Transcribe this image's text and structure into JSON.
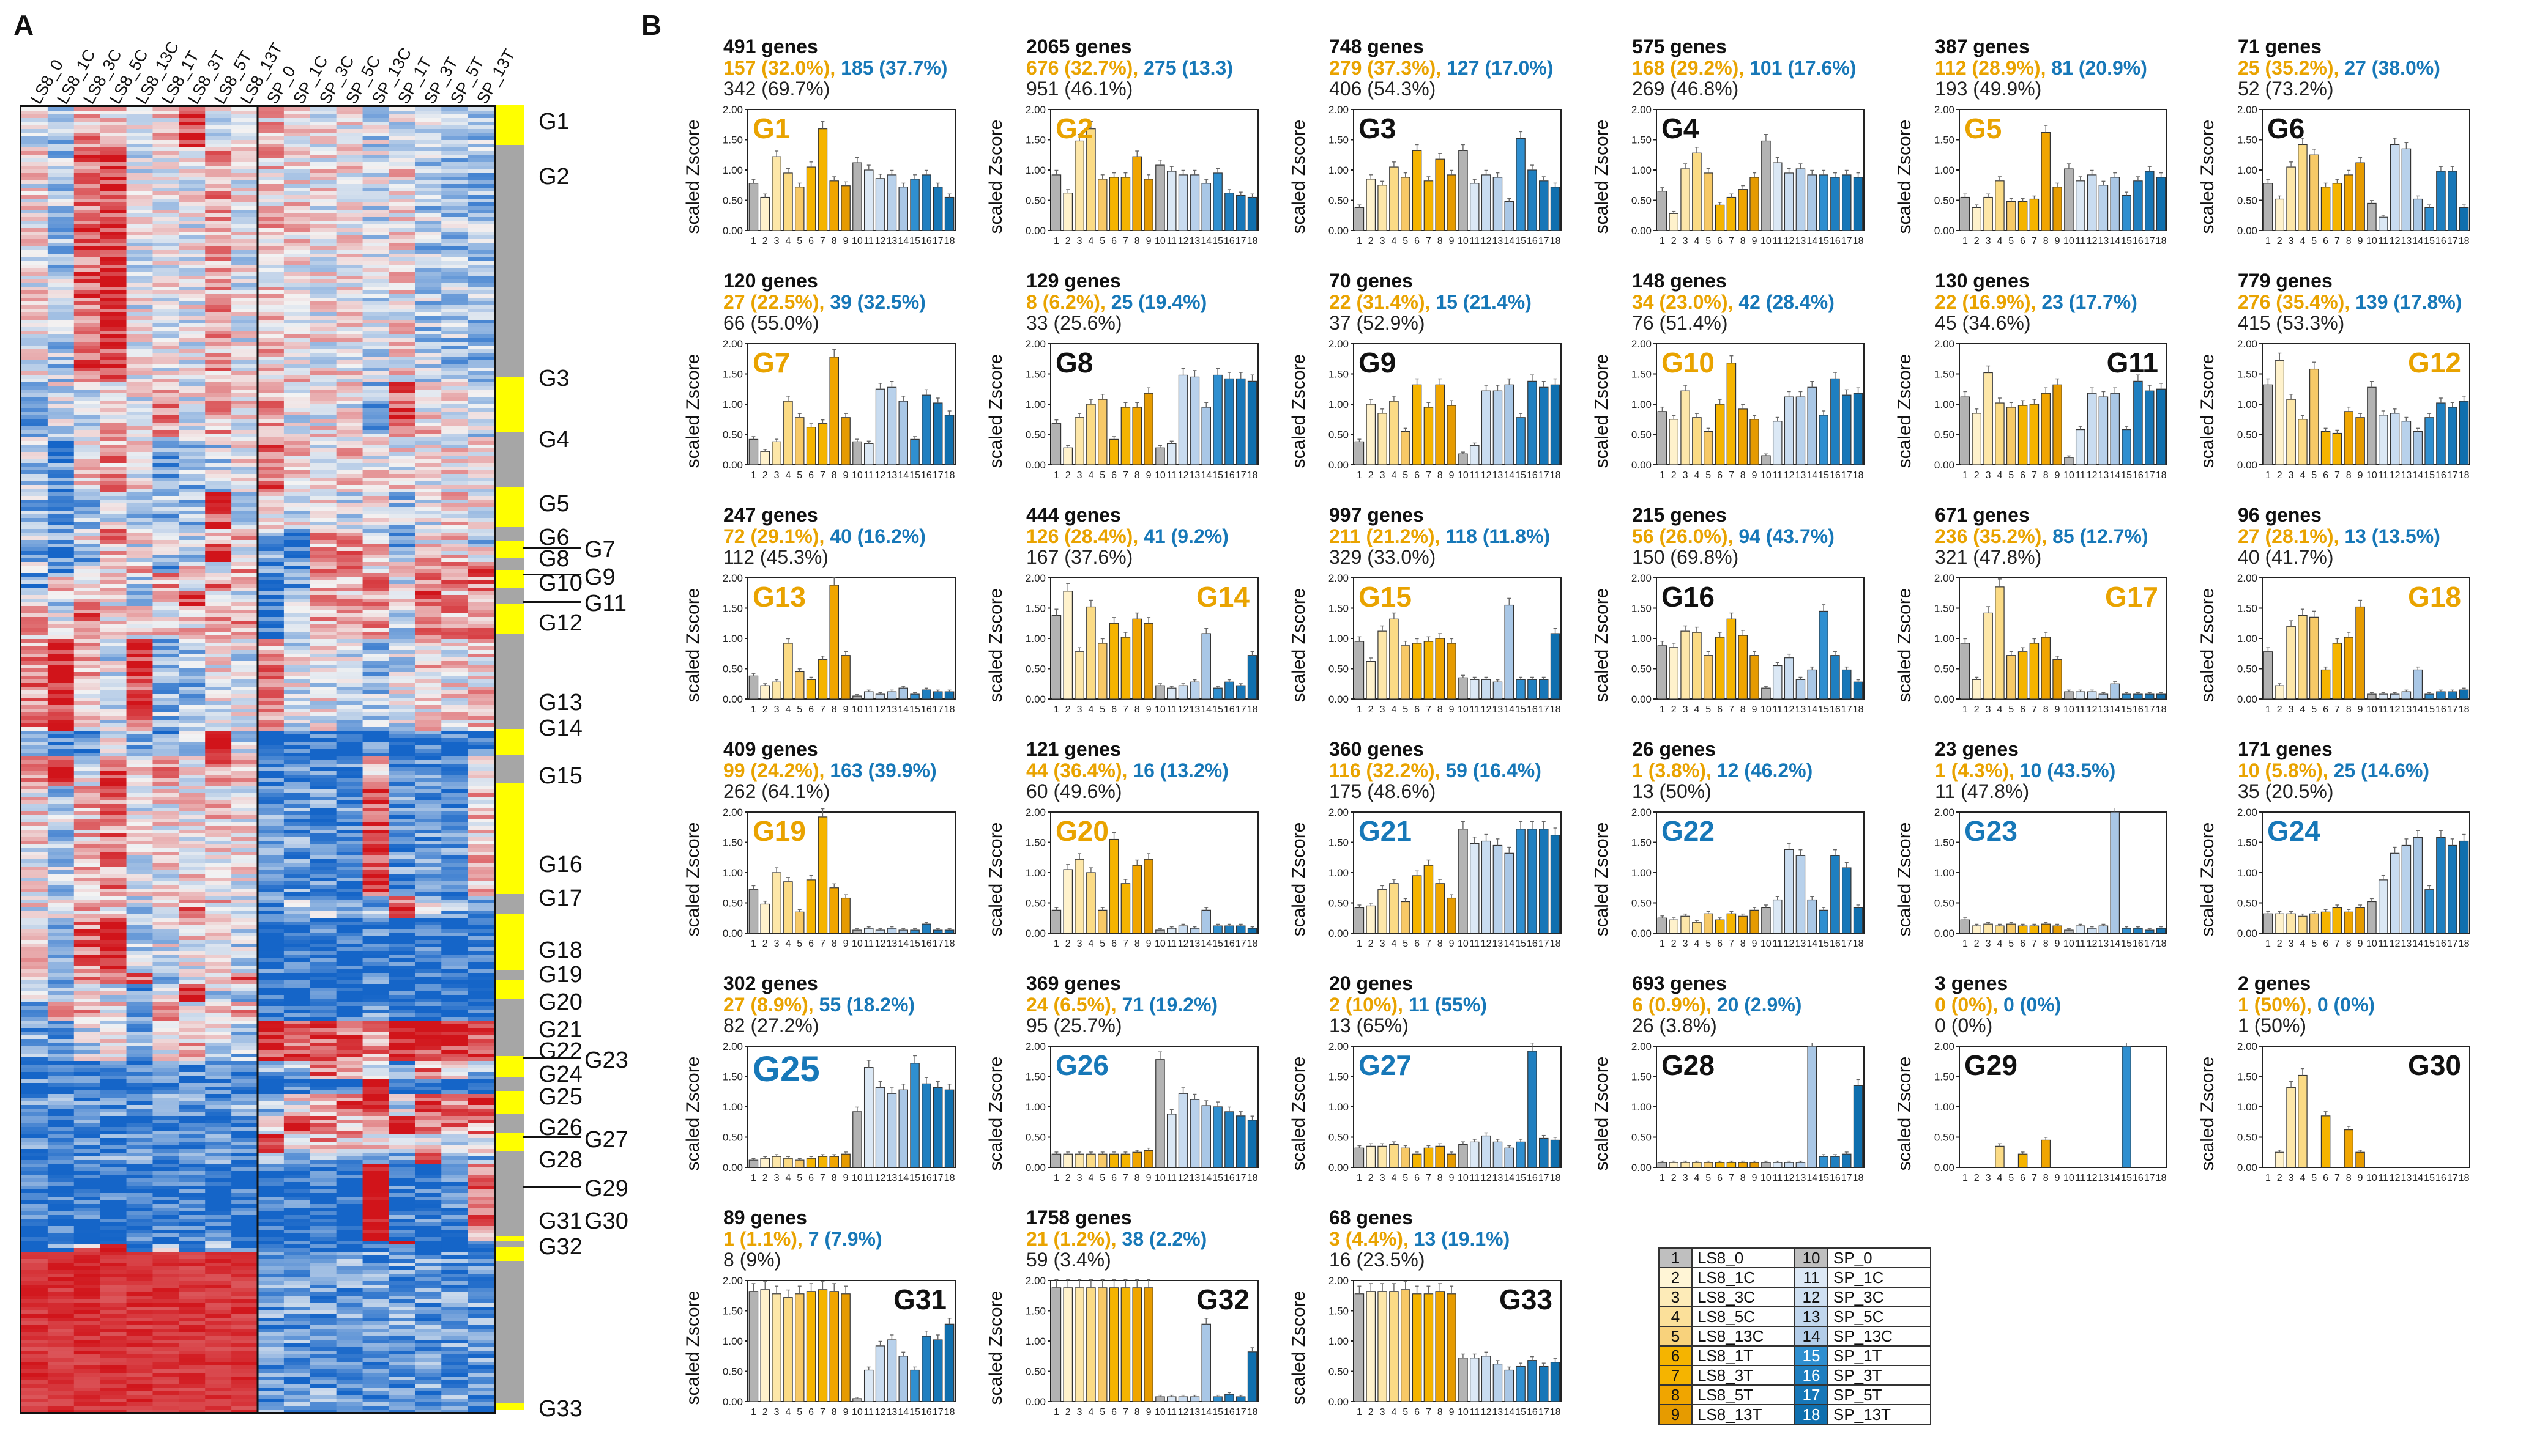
{
  "panels": {
    "a": "A",
    "b": "B"
  },
  "heatmap": {
    "columns": [
      "LS8_0",
      "LS8_1C",
      "LS8_3C",
      "LS8_5C",
      "LS8_13C",
      "LS8_1T",
      "LS8_3T",
      "LS8_5T",
      "LS8_13T",
      "SP_0",
      "SP_1C",
      "SP_3C",
      "SP_5C",
      "SP_13C",
      "SP_1T",
      "SP_3T",
      "SP_5T",
      "SP_13T"
    ],
    "groups": [
      "G1",
      "G2",
      "G3",
      "G4",
      "G5",
      "G6",
      "G7",
      "G8",
      "G9",
      "G10",
      "G11",
      "G12",
      "G13",
      "G14",
      "G15",
      "G16",
      "G17",
      "G18",
      "G19",
      "G20",
      "G21",
      "G22",
      "G23",
      "G24",
      "G25",
      "G26",
      "G27",
      "G28",
      "G29",
      "G30",
      "G31",
      "G32",
      "G33"
    ],
    "colors": {
      "high": "#d1141a",
      "mid": "#f3f3f3",
      "low": "#1565c8",
      "sidebar_yellow": "#ffff00",
      "sidebar_gray": "#a6a6a6"
    }
  },
  "chart_common": {
    "ylabel": "scaled Zscore",
    "yticks": [
      "0.00",
      "0.50",
      "1.00",
      "1.50",
      "2.00"
    ],
    "ylim": [
      0,
      2.0
    ],
    "xticks": [
      "1",
      "2",
      "3",
      "4",
      "5",
      "6",
      "7",
      "8",
      "9",
      "10",
      "11",
      "12",
      "13",
      "14",
      "15",
      "16",
      "17",
      "18"
    ],
    "bar_colors": [
      "#b3b3b3",
      "#fff2cc",
      "#fde7a9",
      "#fbdb85",
      "#f7c967",
      "#f5b400",
      "#f5b400",
      "#f0a500",
      "#e69b00",
      "#b3b3b3",
      "#dbe8f5",
      "#c9dcf0",
      "#b8d1eb",
      "#a9c7e6",
      "#2f8fd0",
      "#1f7fc0",
      "#1777b8",
      "#0f6fae"
    ]
  },
  "chart_data": [
    {
      "type": "bar",
      "title": "G1",
      "title_color": "#e9a300",
      "header": {
        "genes": "491 genes",
        "ls8": "157 (32.0%),",
        "sp": "185 (37.7%)",
        "all": "342 (69.7%)"
      },
      "values": [
        0.78,
        0.55,
        1.22,
        0.95,
        0.72,
        1.05,
        1.68,
        0.82,
        0.74,
        1.12,
        1.0,
        0.86,
        0.92,
        0.72,
        0.85,
        0.92,
        0.72,
        0.55
      ]
    },
    {
      "type": "bar",
      "title": "G2",
      "title_color": "#e9a300",
      "header": {
        "genes": "2065 genes",
        "ls8": "676 (32.7%),",
        "sp": "275 (13.3)",
        "all": "951 (46.1%)"
      },
      "values": [
        0.92,
        0.62,
        1.48,
        1.68,
        0.85,
        0.88,
        0.88,
        1.22,
        0.85,
        1.08,
        0.98,
        0.92,
        0.92,
        0.78,
        0.95,
        0.62,
        0.58,
        0.55
      ]
    },
    {
      "type": "bar",
      "title": "G3",
      "title_color": "#111111",
      "header": {
        "genes": "748 genes",
        "ls8": "279 (37.3%),",
        "sp": "127 (17.0%)",
        "all": "406 (54.3%)"
      },
      "values": [
        0.38,
        0.85,
        0.75,
        1.05,
        0.88,
        1.32,
        0.82,
        1.18,
        0.92,
        1.32,
        0.78,
        0.92,
        0.88,
        0.48,
        1.52,
        1.0,
        0.82,
        0.72
      ]
    },
    {
      "type": "bar",
      "title": "G4",
      "title_color": "#111111",
      "header": {
        "genes": "575 genes",
        "ls8": "168 (29.2%),",
        "sp": "101 (17.6%)",
        "all": "269 (46.8%)"
      },
      "values": [
        0.65,
        0.28,
        1.02,
        1.28,
        0.95,
        0.42,
        0.55,
        0.68,
        0.88,
        1.48,
        1.12,
        0.95,
        1.02,
        0.92,
        0.92,
        0.88,
        0.92,
        0.88
      ]
    },
    {
      "type": "bar",
      "title": "G5",
      "title_color": "#e9a300",
      "header": {
        "genes": "387 genes",
        "ls8": "112 (28.9%),",
        "sp": "81 (20.9%)",
        "all": "193 (49.9%)"
      },
      "values": [
        0.55,
        0.38,
        0.55,
        0.82,
        0.48,
        0.48,
        0.52,
        1.62,
        0.72,
        1.02,
        0.82,
        0.92,
        0.75,
        0.88,
        0.58,
        0.82,
        0.98,
        0.88
      ]
    },
    {
      "type": "bar",
      "title": "G6",
      "title_color": "#111111",
      "header": {
        "genes": "71 genes",
        "ls8": "25 (35.2%),",
        "sp": "27 (38.0%)",
        "all": "52 (73.2%)"
      },
      "values": [
        0.78,
        0.52,
        1.05,
        1.42,
        1.25,
        0.72,
        0.78,
        0.92,
        1.12,
        0.45,
        0.22,
        1.42,
        1.35,
        0.52,
        0.38,
        0.98,
        0.98,
        0.38
      ]
    },
    {
      "type": "bar",
      "title": "G7",
      "title_color": "#e9a300",
      "header": {
        "genes": "120 genes",
        "ls8": "27 (22.5%),",
        "sp": "39 (32.5%)",
        "all": "66 (55.0%)"
      },
      "values": [
        0.42,
        0.22,
        0.38,
        1.05,
        0.78,
        0.62,
        0.68,
        1.78,
        0.78,
        0.38,
        0.35,
        1.25,
        1.28,
        1.05,
        0.42,
        1.15,
        1.02,
        0.82
      ]
    },
    {
      "type": "bar",
      "title": "G8",
      "title_color": "#111111",
      "header": {
        "genes": "129 genes",
        "ls8": "8 (6.2%),",
        "sp": "25 (19.4%)",
        "all": "33 (25.6%)"
      },
      "values": [
        0.68,
        0.28,
        0.78,
        1.0,
        1.08,
        0.42,
        0.95,
        0.95,
        1.18,
        0.28,
        0.35,
        1.48,
        1.45,
        0.95,
        1.48,
        1.42,
        1.42,
        1.38
      ]
    },
    {
      "type": "bar",
      "title": "G9",
      "title_color": "#111111",
      "header": {
        "genes": "70 genes",
        "ls8": "22 (31.4%),",
        "sp": "15 (21.4%)",
        "all": "37 (52.9%)"
      },
      "values": [
        0.38,
        1.0,
        0.85,
        1.05,
        0.55,
        1.32,
        0.95,
        1.32,
        0.98,
        0.18,
        0.32,
        1.22,
        1.22,
        1.32,
        0.78,
        1.38,
        1.28,
        1.32
      ]
    },
    {
      "type": "bar",
      "title": "G10",
      "title_color": "#e9a300",
      "header": {
        "genes": "148 genes",
        "ls8": "34 (23.0%),",
        "sp": "42 (28.4%)",
        "all": "76 (51.4%)"
      },
      "values": [
        0.88,
        0.75,
        1.22,
        0.78,
        0.55,
        1.0,
        1.68,
        0.92,
        0.75,
        0.15,
        0.72,
        1.12,
        1.12,
        1.28,
        0.82,
        1.42,
        1.15,
        1.18
      ]
    },
    {
      "type": "bar",
      "title": "G11",
      "title_color": "#111111",
      "header": {
        "genes": "130 genes",
        "ls8": "22 (16.9%),",
        "sp": "23 (17.7%)",
        "all": "45 (34.6%)"
      },
      "values": [
        1.12,
        0.85,
        1.52,
        1.02,
        0.95,
        0.98,
        1.0,
        1.18,
        1.32,
        0.12,
        0.58,
        1.18,
        1.12,
        1.18,
        0.58,
        1.38,
        1.22,
        1.25
      ]
    },
    {
      "type": "bar",
      "title": "G12",
      "title_color": "#e9a300",
      "header": {
        "genes": "779 genes",
        "ls8": "276 (35.4%),",
        "sp": "139 (17.8%)",
        "all": "415 (53.3%)"
      },
      "values": [
        1.32,
        1.72,
        1.08,
        0.75,
        1.58,
        0.55,
        0.52,
        0.88,
        0.78,
        1.28,
        0.82,
        0.85,
        0.72,
        0.55,
        0.78,
        1.02,
        0.95,
        1.05
      ]
    },
    {
      "type": "bar",
      "title": "G13",
      "title_color": "#e9a300",
      "header": {
        "genes": "247 genes",
        "ls8": "72 (29.1%),",
        "sp": "40 (16.2%)",
        "all": "112 (45.3%)"
      },
      "values": [
        0.38,
        0.22,
        0.28,
        0.92,
        0.45,
        0.32,
        0.65,
        1.88,
        0.72,
        0.05,
        0.12,
        0.08,
        0.12,
        0.18,
        0.08,
        0.15,
        0.12,
        0.12
      ]
    },
    {
      "type": "bar",
      "title": "G14",
      "title_color": "#e9a300",
      "header": {
        "genes": "444 genes",
        "ls8": "126 (28.4%),",
        "sp": "41 (9.2%)",
        "all": "167 (37.6%)"
      },
      "values": [
        1.38,
        1.78,
        0.78,
        1.52,
        0.92,
        1.25,
        1.02,
        1.32,
        1.25,
        0.22,
        0.18,
        0.22,
        0.28,
        1.08,
        0.18,
        0.28,
        0.22,
        0.72
      ]
    },
    {
      "type": "bar",
      "title": "G15",
      "title_color": "#e9a300",
      "header": {
        "genes": "997 genes",
        "ls8": "211 (21.2%),",
        "sp": "118 (11.8%)",
        "all": "329 (33.0%)"
      },
      "values": [
        0.95,
        0.62,
        1.12,
        1.32,
        0.88,
        0.92,
        0.95,
        1.0,
        0.92,
        0.35,
        0.32,
        0.32,
        0.28,
        1.55,
        0.32,
        0.32,
        0.32,
        1.08
      ]
    },
    {
      "type": "bar",
      "title": "G16",
      "title_color": "#111111",
      "header": {
        "genes": "215 genes",
        "ls8": "56 (26.0%),",
        "sp": "94 (43.7%)",
        "all": "150 (69.8%)"
      },
      "values": [
        0.88,
        0.85,
        1.12,
        1.1,
        0.72,
        1.02,
        1.32,
        1.05,
        0.72,
        0.18,
        0.55,
        0.68,
        0.32,
        0.48,
        1.45,
        0.72,
        0.48,
        0.28
      ]
    },
    {
      "type": "bar",
      "title": "G17",
      "title_color": "#e9a300",
      "header": {
        "genes": "671 genes",
        "ls8": "236 (35.2%),",
        "sp": "85 (12.7%)",
        "all": "321 (47.8%)"
      },
      "values": [
        0.92,
        0.32,
        1.42,
        1.85,
        0.72,
        0.78,
        0.92,
        1.02,
        0.65,
        0.12,
        0.12,
        0.12,
        0.08,
        0.25,
        0.08,
        0.08,
        0.08,
        0.08
      ]
    },
    {
      "type": "bar",
      "title": "G18",
      "title_color": "#e9a300",
      "header": {
        "genes": "96 genes",
        "ls8": "27 (28.1%),",
        "sp": "13 (13.5%)",
        "all": "40 (41.7%)"
      },
      "values": [
        0.78,
        0.22,
        1.2,
        1.38,
        1.35,
        0.48,
        0.92,
        1.02,
        1.52,
        0.08,
        0.08,
        0.08,
        0.12,
        0.48,
        0.08,
        0.12,
        0.12,
        0.15
      ]
    },
    {
      "type": "bar",
      "title": "G19",
      "title_color": "#e9a300",
      "header": {
        "genes": "409 genes",
        "ls8": "99 (24.2%),",
        "sp": "163 (39.9%)",
        "all": "262 (64.1%)"
      },
      "values": [
        0.72,
        0.48,
        1.0,
        0.85,
        0.35,
        0.88,
        1.92,
        0.75,
        0.58,
        0.05,
        0.08,
        0.05,
        0.08,
        0.05,
        0.05,
        0.15,
        0.05,
        0.05
      ]
    },
    {
      "type": "bar",
      "title": "G20",
      "title_color": "#e9a300",
      "header": {
        "genes": "121 genes",
        "ls8": "44 (36.4%),",
        "sp": "16 (13.2%)",
        "all": "60 (49.6%)"
      },
      "values": [
        0.38,
        1.05,
        1.22,
        1.0,
        0.38,
        1.55,
        0.82,
        1.12,
        1.22,
        0.05,
        0.08,
        0.12,
        0.08,
        0.38,
        0.12,
        0.12,
        0.12,
        0.08
      ]
    },
    {
      "type": "bar",
      "title": "G21",
      "title_color": "#1778b8",
      "header": {
        "genes": "360 genes",
        "ls8": "116 (32.2%),",
        "sp": "59 (16.4%)",
        "all": "175 (48.6%)"
      },
      "values": [
        0.42,
        0.45,
        0.72,
        0.82,
        0.52,
        0.95,
        1.12,
        0.82,
        0.58,
        1.72,
        1.48,
        1.52,
        1.45,
        1.32,
        1.72,
        1.72,
        1.72,
        1.62
      ]
    },
    {
      "type": "bar",
      "title": "G22",
      "title_color": "#1778b8",
      "header": {
        "genes": "26 genes",
        "ls8": "1 (3.8%),",
        "sp": "12 (46.2%)",
        "all": "13 (50%)"
      },
      "values": [
        0.25,
        0.22,
        0.28,
        0.18,
        0.32,
        0.22,
        0.32,
        0.28,
        0.38,
        0.42,
        0.55,
        1.38,
        1.28,
        0.55,
        0.38,
        1.28,
        1.08,
        0.42
      ]
    },
    {
      "type": "bar",
      "title": "G23",
      "title_color": "#1778b8",
      "header": {
        "genes": "23 genes",
        "ls8": "1 (4.3%),",
        "sp": "10 (43.5%)",
        "all": "11 (47.8%)"
      },
      "values": [
        0.22,
        0.12,
        0.15,
        0.12,
        0.15,
        0.12,
        0.12,
        0.15,
        0.12,
        0.05,
        0.12,
        0.08,
        0.12,
        2.0,
        0.08,
        0.08,
        0.05,
        0.08
      ]
    },
    {
      "type": "bar",
      "title": "G24",
      "title_color": "#1778b8",
      "header": {
        "genes": "171 genes",
        "ls8": "10 (5.8%),",
        "sp": "25 (14.6%)",
        "all": "35 (20.5%)"
      },
      "values": [
        0.32,
        0.32,
        0.32,
        0.28,
        0.32,
        0.35,
        0.42,
        0.35,
        0.42,
        0.52,
        0.88,
        1.32,
        1.45,
        1.58,
        0.72,
        1.58,
        1.45,
        1.52
      ]
    },
    {
      "type": "bar",
      "title": "G25",
      "title_color": "#1778b8",
      "big": true,
      "header": {
        "genes": "302 genes",
        "ls8": "27 (8.9%),",
        "sp": "55 (18.2%)",
        "all": "82 (27.2%)"
      },
      "values": [
        0.12,
        0.15,
        0.18,
        0.15,
        0.12,
        0.15,
        0.18,
        0.18,
        0.22,
        0.92,
        1.65,
        1.32,
        1.22,
        1.28,
        1.72,
        1.38,
        1.32,
        1.28
      ]
    },
    {
      "type": "bar",
      "title": "G26",
      "title_color": "#1778b8",
      "header": {
        "genes": "369 genes",
        "ls8": "24 (6.5%),",
        "sp": "71 (19.2%)",
        "all": "95 (25.7%)"
      },
      "values": [
        0.22,
        0.22,
        0.22,
        0.22,
        0.22,
        0.22,
        0.22,
        0.25,
        0.28,
        1.78,
        0.88,
        1.22,
        1.12,
        1.02,
        1.0,
        0.92,
        0.85,
        0.78
      ]
    },
    {
      "type": "bar",
      "title": "G27",
      "title_color": "#1778b8",
      "header": {
        "genes": "20 genes",
        "ls8": "2 (10%),",
        "sp": "11 (55%)",
        "all": "13 (65%)"
      },
      "values": [
        0.32,
        0.35,
        0.35,
        0.38,
        0.32,
        0.22,
        0.32,
        0.35,
        0.22,
        0.38,
        0.42,
        0.52,
        0.42,
        0.32,
        0.42,
        1.92,
        0.48,
        0.45
      ]
    },
    {
      "type": "bar",
      "title": "G28",
      "title_color": "#111111",
      "header": {
        "genes": "693 genes",
        "ls8": "6 (0.9%),",
        "sp": "20 (2.9%)",
        "all": "26 (3.8%)"
      },
      "values": [
        0.08,
        0.08,
        0.08,
        0.08,
        0.08,
        0.08,
        0.08,
        0.08,
        0.08,
        0.08,
        0.08,
        0.08,
        0.08,
        2.0,
        0.18,
        0.18,
        0.22,
        1.35
      ]
    },
    {
      "type": "bar",
      "title": "G29",
      "title_color": "#111111",
      "header": {
        "genes": "3 genes",
        "ls8": "0 (0%),",
        "sp": "0 (0%)",
        "all": "0 (0%)"
      },
      "values": [
        0.0,
        0.0,
        0.0,
        0.35,
        0.0,
        0.22,
        0.0,
        0.45,
        0.0,
        0.0,
        0.0,
        0.0,
        0.0,
        0.0,
        2.0,
        0.0,
        0.0,
        0.0
      ]
    },
    {
      "type": "bar",
      "title": "G30",
      "title_color": "#111111",
      "header": {
        "genes": "2 genes",
        "ls8": "1 (50%),",
        "sp": "0 (0%)",
        "all": "1 (50%)"
      },
      "values": [
        0.0,
        0.25,
        1.32,
        1.52,
        0.0,
        0.85,
        0.0,
        0.62,
        0.25,
        0.0,
        0.0,
        0.0,
        0.0,
        0.0,
        0.0,
        0.0,
        0.0,
        0.0
      ]
    },
    {
      "type": "bar",
      "title": "G31",
      "title_color": "#111111",
      "header": {
        "genes": "89 genes",
        "ls8": "1 (1.1%),",
        "sp": "7 (7.9%)",
        "all": "8 (9%)"
      },
      "values": [
        1.82,
        1.85,
        1.78,
        1.72,
        1.78,
        1.82,
        1.85,
        1.82,
        1.78,
        0.05,
        0.52,
        0.92,
        1.02,
        0.75,
        0.52,
        1.08,
        1.02,
        1.28
      ]
    },
    {
      "type": "bar",
      "title": "G32",
      "title_color": "#111111",
      "header": {
        "genes": "1758 genes",
        "ls8": "21 (1.2%),",
        "sp": "38 (2.2%)",
        "all": "59 (3.4%)"
      },
      "values": [
        1.88,
        1.88,
        1.88,
        1.88,
        1.88,
        1.88,
        1.88,
        1.88,
        1.88,
        0.08,
        0.08,
        0.08,
        0.08,
        1.28,
        0.08,
        0.12,
        0.08,
        0.82
      ]
    },
    {
      "type": "bar",
      "title": "G33",
      "title_color": "#111111",
      "header": {
        "genes": "68 genes",
        "ls8": "3 (4.4%),",
        "sp": "13 (19.1%)",
        "all": "16 (23.5%)"
      },
      "values": [
        1.78,
        1.82,
        1.82,
        1.82,
        1.85,
        1.78,
        1.78,
        1.82,
        1.78,
        0.72,
        0.72,
        0.75,
        0.62,
        0.52,
        0.58,
        0.68,
        0.58,
        0.65
      ]
    }
  ],
  "legend": {
    "rows": [
      {
        "n1": "1",
        "s1": "LS8_0",
        "n2": "10",
        "s2": "SP_0",
        "c1": "#bfbfbf",
        "c2": "#bfbfbf"
      },
      {
        "n1": "2",
        "s1": "LS8_1C",
        "n2": "11",
        "s2": "SP_1C",
        "c1": "#fff5d6",
        "c2": "#dde9f6"
      },
      {
        "n1": "3",
        "s1": "LS8_3C",
        "n2": "12",
        "s2": "SP_3C",
        "c1": "#fdebb8",
        "c2": "#cfe0f2"
      },
      {
        "n1": "4",
        "s1": "LS8_5C",
        "n2": "13",
        "s2": "SP_5C",
        "c1": "#fbe09a",
        "c2": "#c1d7ee"
      },
      {
        "n1": "5",
        "s1": "LS8_13C",
        "n2": "14",
        "s2": "SP_13C",
        "c1": "#f8d27c",
        "c2": "#b3cde9"
      },
      {
        "n1": "6",
        "s1": "LS8_1T",
        "n2": "15",
        "s2": "SP_1T",
        "c1": "#f5b400",
        "c2": "#2f8fd0"
      },
      {
        "n1": "7",
        "s1": "LS8_3T",
        "n2": "16",
        "s2": "SP_3T",
        "c1": "#f5b400",
        "c2": "#1f7fc0"
      },
      {
        "n1": "8",
        "s1": "LS8_5T",
        "n2": "17",
        "s2": "SP_5T",
        "c1": "#f0a500",
        "c2": "#1777b8"
      },
      {
        "n1": "9",
        "s1": "LS8_13T",
        "n2": "18",
        "s2": "SP_13T",
        "c1": "#e69b00",
        "c2": "#0f6fae"
      }
    ]
  }
}
